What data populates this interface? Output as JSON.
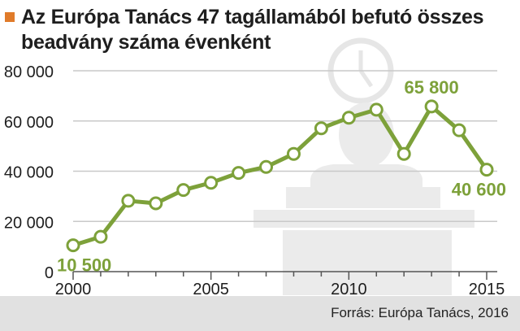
{
  "title": "Az Európa Tanács 47 tagállamából befutó összes beadvány száma évenként",
  "source": "Forrás: Európa Tanács, 2016",
  "colors": {
    "accent": "#e07b2a",
    "line": "#7da13a",
    "text": "#1e1e1e",
    "grid": "#c9c9c9",
    "illustration": "#ebebeb",
    "source_bar": "#e1e1e1"
  },
  "chart_data": {
    "type": "line",
    "title": "Az Európa Tanács 47 tagállamából befutó összes beadvány száma évenként",
    "xlabel": "",
    "ylabel": "",
    "xlim": [
      2000,
      2015
    ],
    "ylim": [
      0,
      80000
    ],
    "grid": true,
    "y_ticks": [
      {
        "value": 0,
        "label": "0"
      },
      {
        "value": 20000,
        "label": "20 000"
      },
      {
        "value": 40000,
        "label": "40 000"
      },
      {
        "value": 60000,
        "label": "60 000"
      },
      {
        "value": 80000,
        "label": "80 000"
      }
    ],
    "x_ticks": [
      {
        "value": 2000,
        "label": "2000"
      },
      {
        "value": 2005,
        "label": "2005"
      },
      {
        "value": 2010,
        "label": "2010"
      },
      {
        "value": 2015,
        "label": "2015"
      }
    ],
    "series": [
      {
        "x": [
          2000,
          2001,
          2002,
          2003,
          2004,
          2005,
          2006,
          2007,
          2008,
          2009,
          2010,
          2011,
          2012,
          2013,
          2014,
          2015
        ],
        "values": [
          10500,
          13900,
          28200,
          27200,
          32500,
          35400,
          39300,
          41700,
          46900,
          57100,
          61300,
          64500,
          46900,
          65800,
          56300,
          40600
        ]
      }
    ],
    "annotations": [
      {
        "x": 2000,
        "y": 10500,
        "text": "10 500",
        "position": "below"
      },
      {
        "x": 2013,
        "y": 65800,
        "text": "65 800",
        "position": "above"
      },
      {
        "x": 2015,
        "y": 40600,
        "text": "40 600",
        "position": "below"
      }
    ]
  }
}
